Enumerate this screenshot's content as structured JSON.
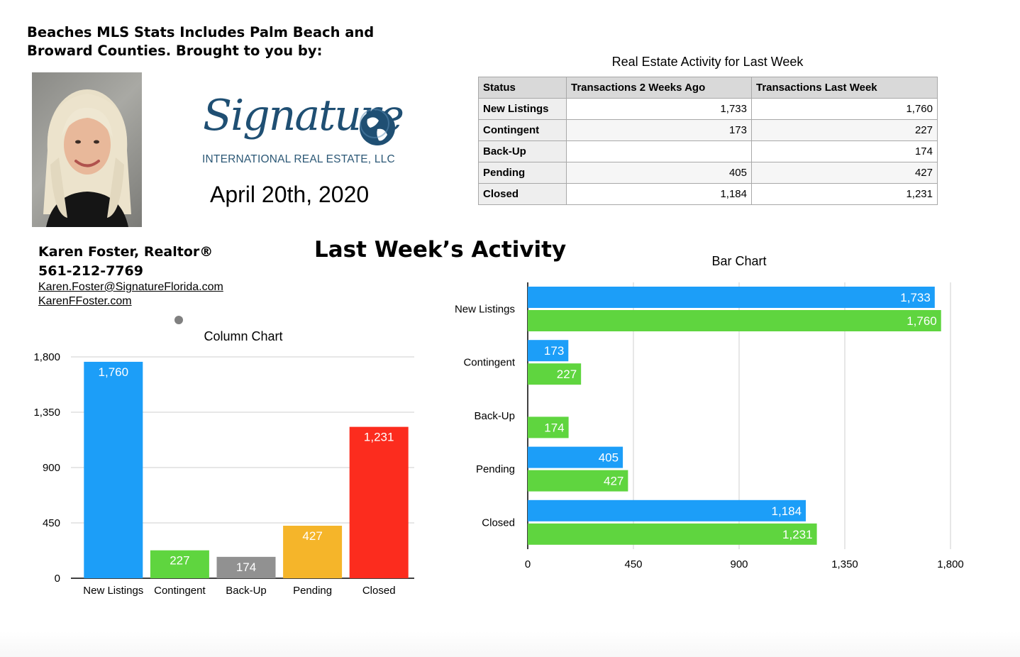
{
  "header": {
    "line1": "Beaches MLS Stats Includes Palm Beach and",
    "line2": "Broward Counties. Brought to you by:"
  },
  "logo": {
    "script_text": "Signature",
    "subtitle": "INTERNATIONAL REAL ESTATE, LLC",
    "colors": {
      "primary": "#1f4f73",
      "globe_light": "#5b8db5"
    }
  },
  "report_date": "April 20th, 2020",
  "agent": {
    "name": "Karen Foster, Realtor®",
    "phone": "561-212-7769",
    "email": "Karen.Foster@SignatureFlorida.com",
    "website": "KarenFFoster.com"
  },
  "main_title": "Last Week’s Activity",
  "table": {
    "title": "Real Estate Activity for Last Week",
    "headers": [
      "Status",
      "Transactions 2 Weeks Ago",
      "Transactions Last Week"
    ],
    "rows": [
      {
        "status": "New Listings",
        "two_weeks_ago": "1,733",
        "last_week": "1,760"
      },
      {
        "status": "Contingent",
        "two_weeks_ago": "173",
        "last_week": "227"
      },
      {
        "status": "Back-Up",
        "two_weeks_ago": "",
        "last_week": "174"
      },
      {
        "status": "Pending",
        "two_weeks_ago": "405",
        "last_week": "427"
      },
      {
        "status": "Closed",
        "two_weeks_ago": "1,184",
        "last_week": "1,231"
      }
    ]
  },
  "chart_data": [
    {
      "type": "bar",
      "orientation": "vertical",
      "title": "Column Chart",
      "categories": [
        "New Listings",
        "Contingent",
        "Back-Up",
        "Pending",
        "Closed"
      ],
      "values": [
        1760,
        227,
        174,
        427,
        1231
      ],
      "value_labels": [
        "1,760",
        "227",
        "174",
        "427",
        "1,231"
      ],
      "colors": [
        "#1c9ef8",
        "#5fd53f",
        "#919191",
        "#f5b52a",
        "#fc2c1e"
      ],
      "ylim": [
        0,
        1800
      ],
      "yticks": [
        0,
        450,
        900,
        1350,
        1800
      ],
      "ytick_labels": [
        "0",
        "450",
        "900",
        "1,350",
        "1,800"
      ],
      "grid": true,
      "xlabel": "",
      "ylabel": ""
    },
    {
      "type": "bar",
      "orientation": "horizontal",
      "title": "Bar Chart",
      "categories": [
        "New Listings",
        "Contingent",
        "Back-Up",
        "Pending",
        "Closed"
      ],
      "series": [
        {
          "values": [
            1733,
            173,
            null,
            405,
            1184
          ],
          "value_labels": [
            "1,733",
            "173",
            "",
            "405",
            "1,184"
          ],
          "color": "#1c9ef8"
        },
        {
          "values": [
            1760,
            227,
            174,
            427,
            1231
          ],
          "value_labels": [
            "1,760",
            "227",
            "174",
            "427",
            "1,231"
          ],
          "color": "#5fd53f"
        }
      ],
      "xlim": [
        0,
        1800
      ],
      "xticks": [
        0,
        450,
        900,
        1350,
        1800
      ],
      "xtick_labels": [
        "0",
        "450",
        "900",
        "1,350",
        "1,800"
      ],
      "grid": true,
      "xlabel": "",
      "ylabel": ""
    }
  ]
}
